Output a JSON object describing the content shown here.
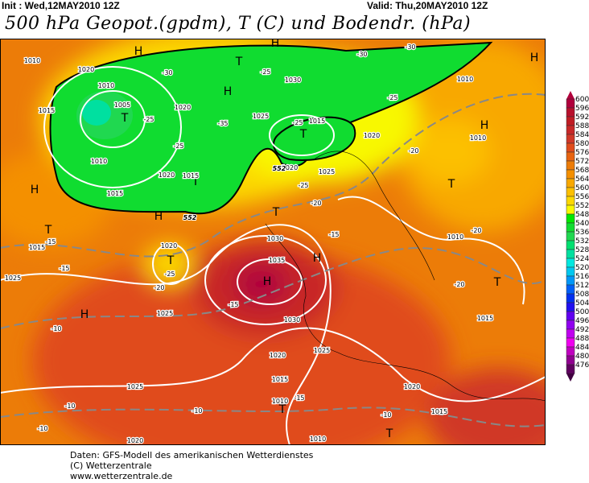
{
  "header": {
    "init": "Init : Wed,12MAY2010 12Z",
    "valid": "Valid: Thu,20MAY2010 12Z",
    "title": "500 hPa Geopot.(gpdm), T (C) und Bodendr. (hPa)"
  },
  "legend": {
    "values": [
      "600",
      "596",
      "592",
      "588",
      "584",
      "580",
      "576",
      "572",
      "568",
      "564",
      "560",
      "556",
      "552",
      "548",
      "540",
      "536",
      "532",
      "528",
      "524",
      "520",
      "516",
      "512",
      "508",
      "504",
      "500",
      "496",
      "492",
      "488",
      "484",
      "480",
      "476"
    ],
    "colors": [
      "#b0003c",
      "#b8102c",
      "#c01c24",
      "#c82828",
      "#d03828",
      "#e04c1c",
      "#e86410",
      "#ec7c08",
      "#f49000",
      "#f8a800",
      "#fcc000",
      "#fcd800",
      "#f8f800",
      "#00e800",
      "#10dc30",
      "#20d850",
      "#00e070",
      "#00e0a0",
      "#00e8e0",
      "#00c8f0",
      "#0098f8",
      "#0060f8",
      "#0030f0",
      "#2010f0",
      "#6000f0",
      "#9000f0",
      "#c000f0",
      "#f000f0",
      "#c000c0",
      "#900090",
      "#600060"
    ]
  },
  "map": {
    "symbols": [
      "H",
      "H",
      "H",
      "H",
      "H",
      "H",
      "H",
      "H",
      "H",
      "H",
      "T",
      "T",
      "T",
      "T",
      "T",
      "T",
      "T",
      "T",
      "T",
      "T",
      "T"
    ],
    "isobars": [
      "1010",
      "1020",
      "1015",
      "1010",
      "1005",
      "1020",
      "1010",
      "1015",
      "1020",
      "1015",
      "1030",
      "1025",
      "1015",
      "1020",
      "1020",
      "1025",
      "1010",
      "1010",
      "1010",
      "1020",
      "1025",
      "1015",
      "1030",
      "1035",
      "1025",
      "1030",
      "1025",
      "1020",
      "1015",
      "1010",
      "1025",
      "1020",
      "1015",
      "1010",
      "1020",
      "1015"
    ],
    "temps": [
      "-30",
      "-30",
      "-30",
      "-25",
      "-25",
      "-25",
      "-25",
      "-25",
      "-25",
      "-25",
      "-35",
      "-20",
      "-20",
      "-20",
      "-20",
      "-20",
      "-15",
      "-15",
      "-15",
      "-15",
      "-10",
      "-10",
      "-10",
      "-10",
      "-10",
      "-15"
    ],
    "geopot": [
      "552",
      "552"
    ]
  },
  "footer": {
    "line1": "Daten: GFS-Modell des amerikanischen Wetterdienstes",
    "line2": "(C) Wetterzentrale",
    "line3": "www.wetterzentrale.de"
  }
}
